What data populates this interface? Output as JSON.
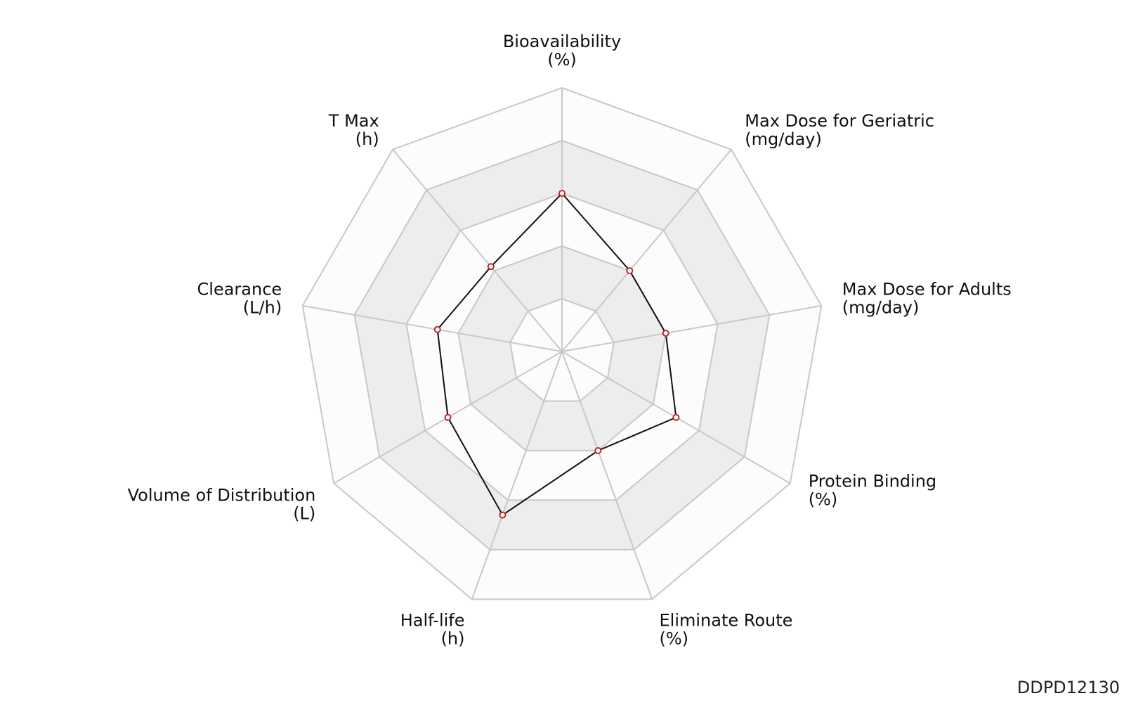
{
  "chart_data": {
    "type": "radar",
    "levels": 5,
    "range": [
      0,
      5
    ],
    "axes": [
      {
        "name": "Bioavailability",
        "unit": "(%)",
        "value": 3.0
      },
      {
        "name": "Max Dose for Geriatric",
        "unit": "(mg/day)",
        "value": 2.0
      },
      {
        "name": "Max Dose for Adults",
        "unit": "(mg/day)",
        "value": 2.0
      },
      {
        "name": "Protein Binding",
        "unit": "(%)",
        "value": 2.5
      },
      {
        "name": "Eliminate Route",
        "unit": "(%)",
        "value": 2.0
      },
      {
        "name": "Half-life",
        "unit": "(h)",
        "value": 3.3
      },
      {
        "name": "Volume of Distribution",
        "unit": "(L)",
        "value": 2.5
      },
      {
        "name": "Clearance",
        "unit": "(L/h)",
        "value": 2.4
      },
      {
        "name": "T Max",
        "unit": "(h)",
        "value": 2.1
      }
    ],
    "colors": {
      "grid": "#c8c8c8",
      "band_light": "#fcfcfc",
      "band_dark": "#ededed",
      "series_line": "#111111",
      "marker_stroke": "#c0282d",
      "marker_fill": "#ffffff"
    }
  },
  "footer": {
    "code": "DDPD12130"
  }
}
